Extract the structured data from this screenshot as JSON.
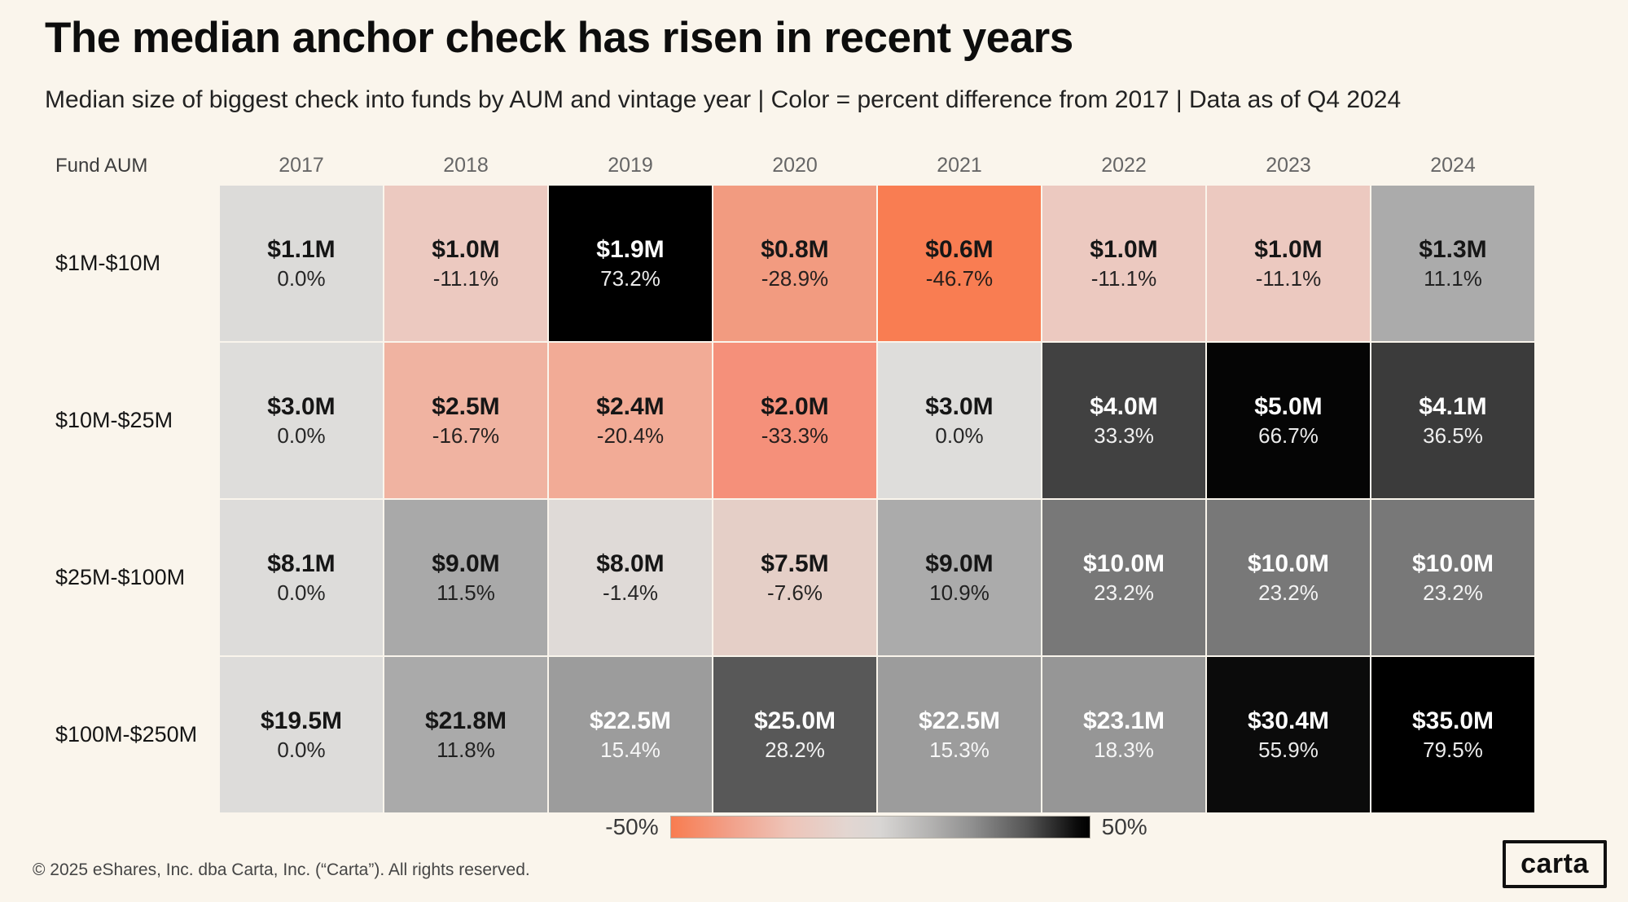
{
  "page": {
    "background_color": "#faf5ec",
    "footer": "© 2025 eShares, Inc. dba Carta, Inc. (“Carta”). All rights reserved.",
    "logo_text": "carta"
  },
  "chart_data": {
    "type": "heatmap",
    "title": "The median anchor check has risen in recent years",
    "subtitle": "Median size of biggest check  into funds by AUM and vintage year | Color = percent difference from 2017 | Data as of Q4 2024",
    "corner_label": "Fund AUM",
    "columns": [
      "2017",
      "2018",
      "2019",
      "2020",
      "2021",
      "2022",
      "2023",
      "2024"
    ],
    "rows": [
      "$1M-$10M",
      "$10M-$25M",
      "$25M-$100M",
      "$100M-$250M"
    ],
    "legend": {
      "min_label": "-50%",
      "max_label": "50%",
      "range_pct": [
        -50,
        50
      ],
      "gradient_stops": [
        "#f87c50",
        "#f0b3a2",
        "#d8d6d4",
        "#8f8f8f",
        "#000000"
      ]
    },
    "cells": [
      [
        {
          "value": "$1.1M",
          "value_m": 1.1,
          "pct": "0.0%",
          "pct_n": 0.0,
          "bg": "#dcdbd9",
          "fg": "#161616"
        },
        {
          "value": "$1.0M",
          "value_m": 1.0,
          "pct": "-11.1%",
          "pct_n": -11.1,
          "bg": "#ecc9c0",
          "fg": "#161616"
        },
        {
          "value": "$1.9M",
          "value_m": 1.9,
          "pct": "73.2%",
          "pct_n": 73.2,
          "bg": "#000000",
          "fg": "#ffffff"
        },
        {
          "value": "$0.8M",
          "value_m": 0.8,
          "pct": "-28.9%",
          "pct_n": -28.9,
          "bg": "#f29b80",
          "fg": "#161616"
        },
        {
          "value": "$0.6M",
          "value_m": 0.6,
          "pct": "-46.7%",
          "pct_n": -46.7,
          "bg": "#f97d52",
          "fg": "#161616"
        },
        {
          "value": "$1.0M",
          "value_m": 1.0,
          "pct": "-11.1%",
          "pct_n": -11.1,
          "bg": "#ecc9c0",
          "fg": "#161616"
        },
        {
          "value": "$1.0M",
          "value_m": 1.0,
          "pct": "-11.1%",
          "pct_n": -11.1,
          "bg": "#ecc9c0",
          "fg": "#161616"
        },
        {
          "value": "$1.3M",
          "value_m": 1.3,
          "pct": "11.1%",
          "pct_n": 11.1,
          "bg": "#ababab",
          "fg": "#161616"
        }
      ],
      [
        {
          "value": "$3.0M",
          "value_m": 3.0,
          "pct": "0.0%",
          "pct_n": 0.0,
          "bg": "#dedddb",
          "fg": "#161616"
        },
        {
          "value": "$2.5M",
          "value_m": 2.5,
          "pct": "-16.7%",
          "pct_n": -16.7,
          "bg": "#f0b3a1",
          "fg": "#161616"
        },
        {
          "value": "$2.4M",
          "value_m": 2.4,
          "pct": "-20.4%",
          "pct_n": -20.4,
          "bg": "#f2ab96",
          "fg": "#161616"
        },
        {
          "value": "$2.0M",
          "value_m": 2.0,
          "pct": "-33.3%",
          "pct_n": -33.3,
          "bg": "#f5907a",
          "fg": "#161616"
        },
        {
          "value": "$3.0M",
          "value_m": 3.0,
          "pct": "0.0%",
          "pct_n": 0.0,
          "bg": "#dedddb",
          "fg": "#161616"
        },
        {
          "value": "$4.0M",
          "value_m": 4.0,
          "pct": "33.3%",
          "pct_n": 33.3,
          "bg": "#414141",
          "fg": "#ffffff"
        },
        {
          "value": "$5.0M",
          "value_m": 5.0,
          "pct": "66.7%",
          "pct_n": 66.7,
          "bg": "#050505",
          "fg": "#ffffff"
        },
        {
          "value": "$4.1M",
          "value_m": 4.1,
          "pct": "36.5%",
          "pct_n": 36.5,
          "bg": "#3b3b3b",
          "fg": "#ffffff"
        }
      ],
      [
        {
          "value": "$8.1M",
          "value_m": 8.1,
          "pct": "0.0%",
          "pct_n": 0.0,
          "bg": "#dddcda",
          "fg": "#161616"
        },
        {
          "value": "$9.0M",
          "value_m": 9.0,
          "pct": "11.5%",
          "pct_n": 11.5,
          "bg": "#a9a9a9",
          "fg": "#161616"
        },
        {
          "value": "$8.0M",
          "value_m": 8.0,
          "pct": "-1.4%",
          "pct_n": -1.4,
          "bg": "#dfdad7",
          "fg": "#161616"
        },
        {
          "value": "$7.5M",
          "value_m": 7.5,
          "pct": "-7.6%",
          "pct_n": -7.6,
          "bg": "#e5cfc7",
          "fg": "#161616"
        },
        {
          "value": "$9.0M",
          "value_m": 9.0,
          "pct": "10.9%",
          "pct_n": 10.9,
          "bg": "#ababab",
          "fg": "#161616"
        },
        {
          "value": "$10.0M",
          "value_m": 10.0,
          "pct": "23.2%",
          "pct_n": 23.2,
          "bg": "#787878",
          "fg": "#ffffff"
        },
        {
          "value": "$10.0M",
          "value_m": 10.0,
          "pct": "23.2%",
          "pct_n": 23.2,
          "bg": "#787878",
          "fg": "#ffffff"
        },
        {
          "value": "$10.0M",
          "value_m": 10.0,
          "pct": "23.2%",
          "pct_n": 23.2,
          "bg": "#787878",
          "fg": "#ffffff"
        }
      ],
      [
        {
          "value": "$19.5M",
          "value_m": 19.5,
          "pct": "0.0%",
          "pct_n": 0.0,
          "bg": "#dddcda",
          "fg": "#161616"
        },
        {
          "value": "$21.8M",
          "value_m": 21.8,
          "pct": "11.8%",
          "pct_n": 11.8,
          "bg": "#aaaaaa",
          "fg": "#161616"
        },
        {
          "value": "$22.5M",
          "value_m": 22.5,
          "pct": "15.4%",
          "pct_n": 15.4,
          "bg": "#9c9c9c",
          "fg": "#ffffff"
        },
        {
          "value": "$25.0M",
          "value_m": 25.0,
          "pct": "28.2%",
          "pct_n": 28.2,
          "bg": "#585858",
          "fg": "#ffffff"
        },
        {
          "value": "$22.5M",
          "value_m": 22.5,
          "pct": "15.3%",
          "pct_n": 15.3,
          "bg": "#9c9c9c",
          "fg": "#ffffff"
        },
        {
          "value": "$23.1M",
          "value_m": 23.1,
          "pct": "18.3%",
          "pct_n": 18.3,
          "bg": "#969696",
          "fg": "#ffffff"
        },
        {
          "value": "$30.4M",
          "value_m": 30.4,
          "pct": "55.9%",
          "pct_n": 55.9,
          "bg": "#0b0b0b",
          "fg": "#ffffff"
        },
        {
          "value": "$35.0M",
          "value_m": 35.0,
          "pct": "79.5%",
          "pct_n": 79.5,
          "bg": "#000000",
          "fg": "#ffffff"
        }
      ]
    ]
  }
}
